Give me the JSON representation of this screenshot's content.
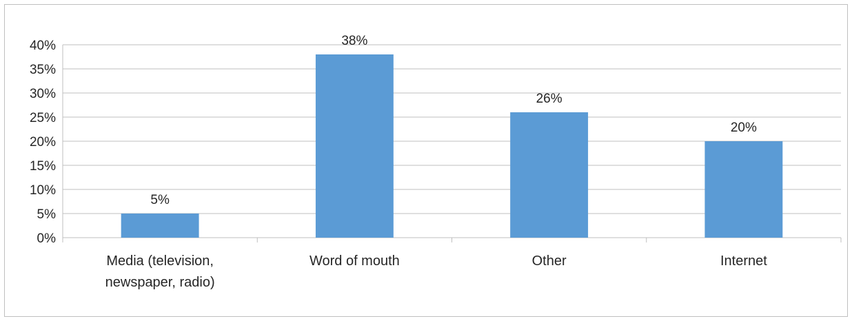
{
  "chart_data": {
    "type": "bar",
    "categories": [
      [
        "Media (television,",
        "newspaper, radio)"
      ],
      [
        "Word of mouth"
      ],
      [
        "Other"
      ],
      [
        "Internet"
      ]
    ],
    "values": [
      5,
      38,
      26,
      20
    ],
    "data_labels": [
      "5%",
      "38%",
      "26%",
      "20%"
    ],
    "title": "",
    "xlabel": "",
    "ylabel": "",
    "ylim": [
      0,
      40
    ],
    "yticks": [
      0,
      5,
      10,
      15,
      20,
      25,
      30,
      35,
      40
    ],
    "ytick_labels": [
      "0%",
      "5%",
      "10%",
      "15%",
      "20%",
      "25%",
      "30%",
      "35%",
      "40%"
    ],
    "grid": true,
    "legend": "none",
    "bar_color": "#5b9bd5",
    "grid_color": "#bfbfbf",
    "text_color": "#262626"
  }
}
